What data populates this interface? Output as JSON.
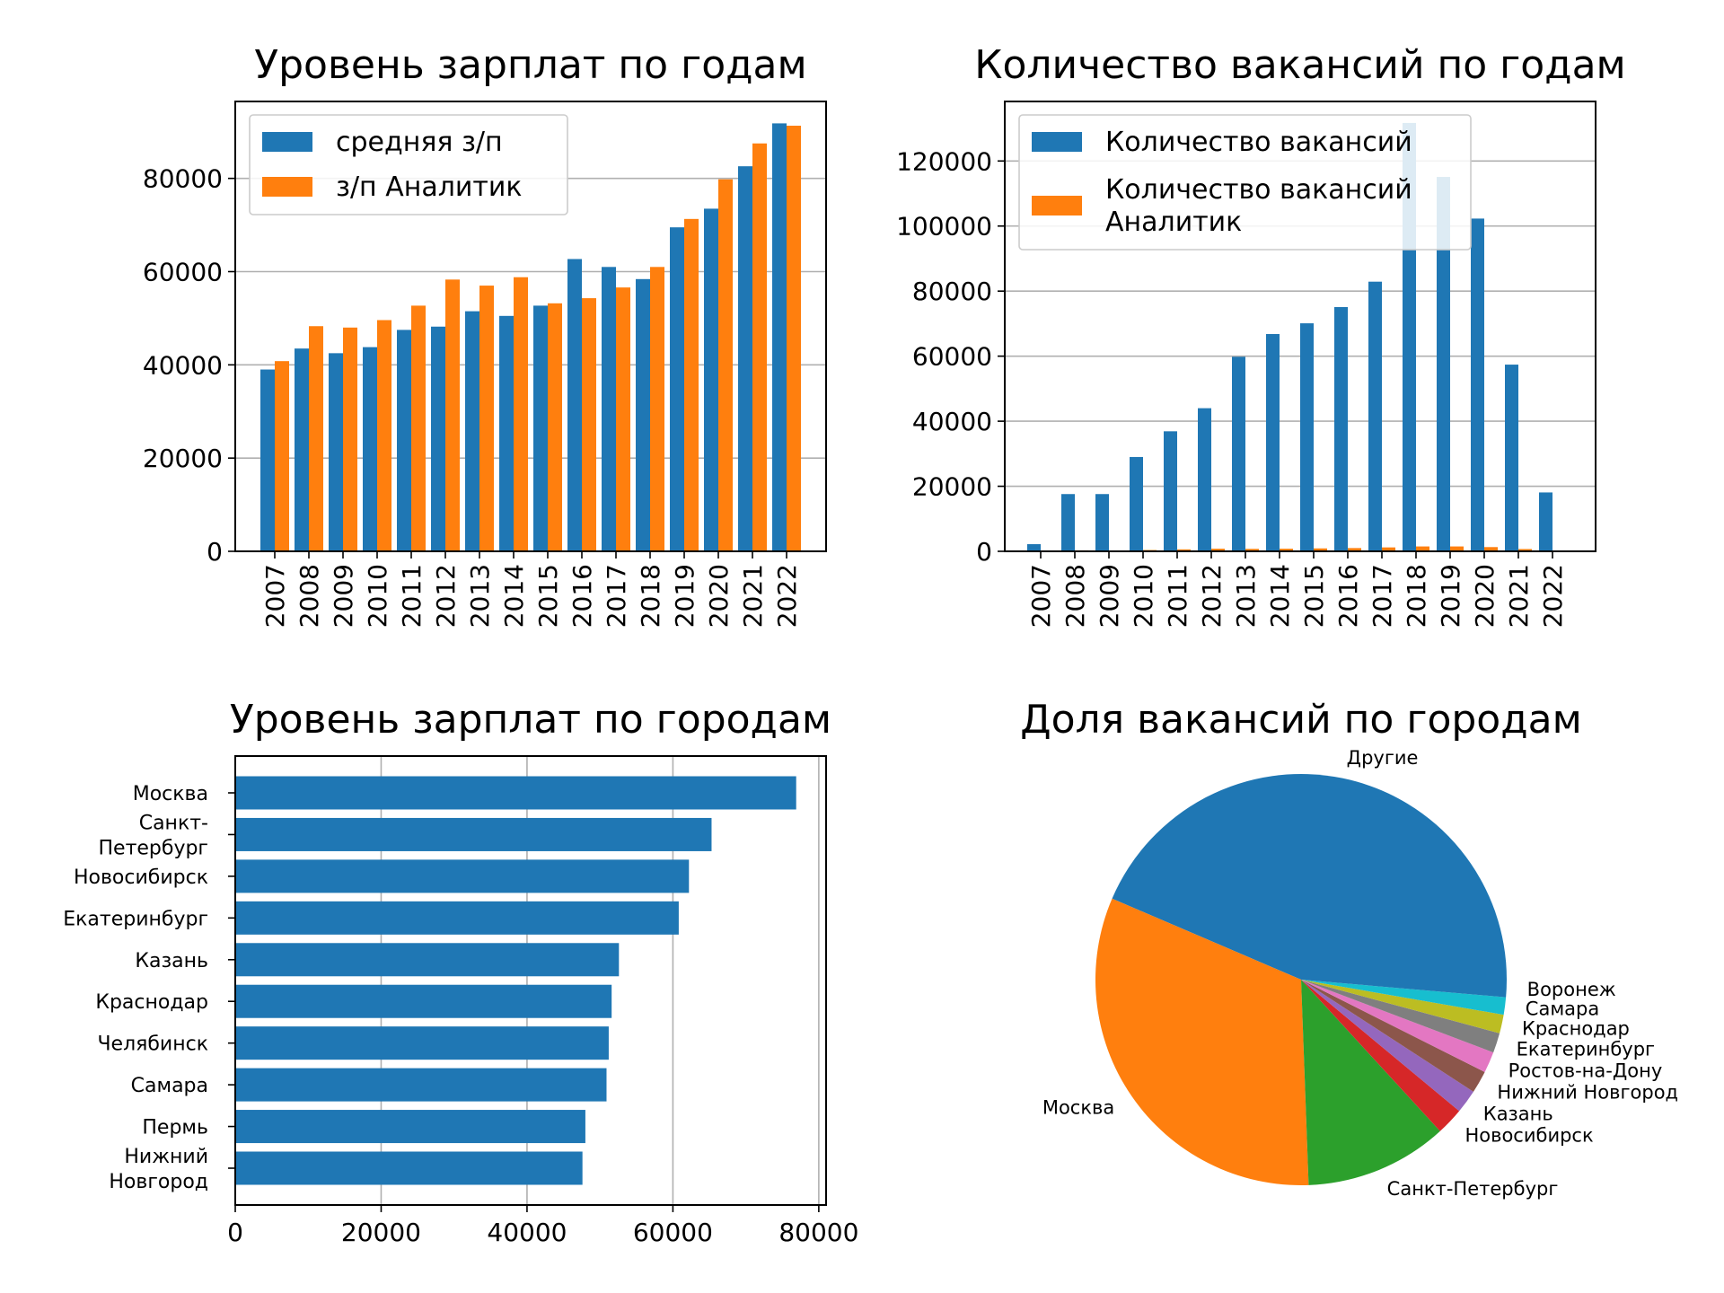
{
  "chart_data": [
    {
      "type": "bar",
      "title": "Уровень зарплат по годам",
      "categories": [
        "2007",
        "2008",
        "2009",
        "2010",
        "2011",
        "2012",
        "2013",
        "2014",
        "2015",
        "2016",
        "2017",
        "2018",
        "2019",
        "2020",
        "2021",
        "2022"
      ],
      "series": [
        {
          "name": "средняя з/п",
          "color": "#1f77b4",
          "values": [
            39000,
            43500,
            42500,
            43800,
            47500,
            48200,
            51500,
            50500,
            52700,
            62700,
            61000,
            58400,
            69500,
            73500,
            82600,
            91800
          ]
        },
        {
          "name": "з/п Аналитик",
          "color": "#ff7f0e",
          "values": [
            40800,
            48300,
            48000,
            49600,
            52700,
            58300,
            57000,
            58800,
            53200,
            54300,
            56600,
            61000,
            71300,
            79800,
            87500,
            91300
          ]
        }
      ],
      "ylim": [
        0,
        96500
      ],
      "yticks": [
        0,
        20000,
        40000,
        60000,
        80000
      ],
      "grid": "y",
      "legend": "top-left"
    },
    {
      "type": "bar",
      "title": "Количество вакансий по годам",
      "categories": [
        "2007",
        "2008",
        "2009",
        "2010",
        "2011",
        "2012",
        "2013",
        "2014",
        "2015",
        "2016",
        "2017",
        "2018",
        "2019",
        "2020",
        "2021",
        "2022"
      ],
      "series": [
        {
          "name": "Количество вакансий",
          "color": "#1f77b4",
          "values": [
            2200,
            17600,
            17600,
            29000,
            36900,
            44000,
            59800,
            66800,
            70100,
            75100,
            82900,
            131700,
            115100,
            102300,
            57400,
            18100
          ]
        },
        {
          "name": "Количество вакансий\nАналитик",
          "color": "#ff7f0e",
          "values": [
            50,
            300,
            250,
            400,
            600,
            800,
            750,
            800,
            900,
            1000,
            1200,
            1500,
            1500,
            1300,
            700,
            150
          ]
        }
      ],
      "ylim": [
        0,
        138300
      ],
      "yticks": [
        0,
        20000,
        40000,
        60000,
        80000,
        100000,
        120000
      ],
      "grid": "y",
      "legend": "top-left"
    },
    {
      "type": "bar",
      "orientation": "horizontal",
      "title": "Уровень зарплат по городам",
      "categories": [
        "Москва",
        "Санкт-\nПетербург",
        "Новосибирск",
        "Екатеринбург",
        "Казань",
        "Краснодар",
        "Челябинск",
        "Самара",
        "Пермь",
        "Нижний\nНовгород"
      ],
      "values": [
        76900,
        65300,
        62200,
        60800,
        52600,
        51600,
        51200,
        50900,
        48000,
        47600
      ],
      "color": "#1f77b4",
      "xlim": [
        0,
        81000
      ],
      "xticks": [
        0,
        20000,
        40000,
        60000,
        80000
      ],
      "grid": "x"
    },
    {
      "type": "pie",
      "title": "Доля вакансий по городам",
      "slices": [
        {
          "label": "Другие",
          "value": 44.6,
          "color": "#1f77b4"
        },
        {
          "label": "Москва",
          "value": 32.8,
          "color": "#ff7f0e"
        },
        {
          "label": "Санкт-Петербург",
          "value": 11.5,
          "color": "#2ca02c"
        },
        {
          "label": "Новосибирск",
          "value": 2.2,
          "color": "#d62728"
        },
        {
          "label": "Казань",
          "value": 1.9,
          "color": "#9467bd"
        },
        {
          "label": "Нижний Новгород",
          "value": 1.8,
          "color": "#8c564b"
        },
        {
          "label": "Ростов-на-Дону",
          "value": 1.7,
          "color": "#e377c2"
        },
        {
          "label": "Екатеринбург",
          "value": 1.6,
          "color": "#7f7f7f"
        },
        {
          "label": "Краснодар",
          "value": 1.5,
          "color": "#bcbd22"
        },
        {
          "label": "Самара",
          "value": 1.4,
          "color": "#17becf"
        },
        {
          "label": "Воронеж",
          "value": 1.4,
          "color": "#1f77b4"
        }
      ]
    }
  ]
}
